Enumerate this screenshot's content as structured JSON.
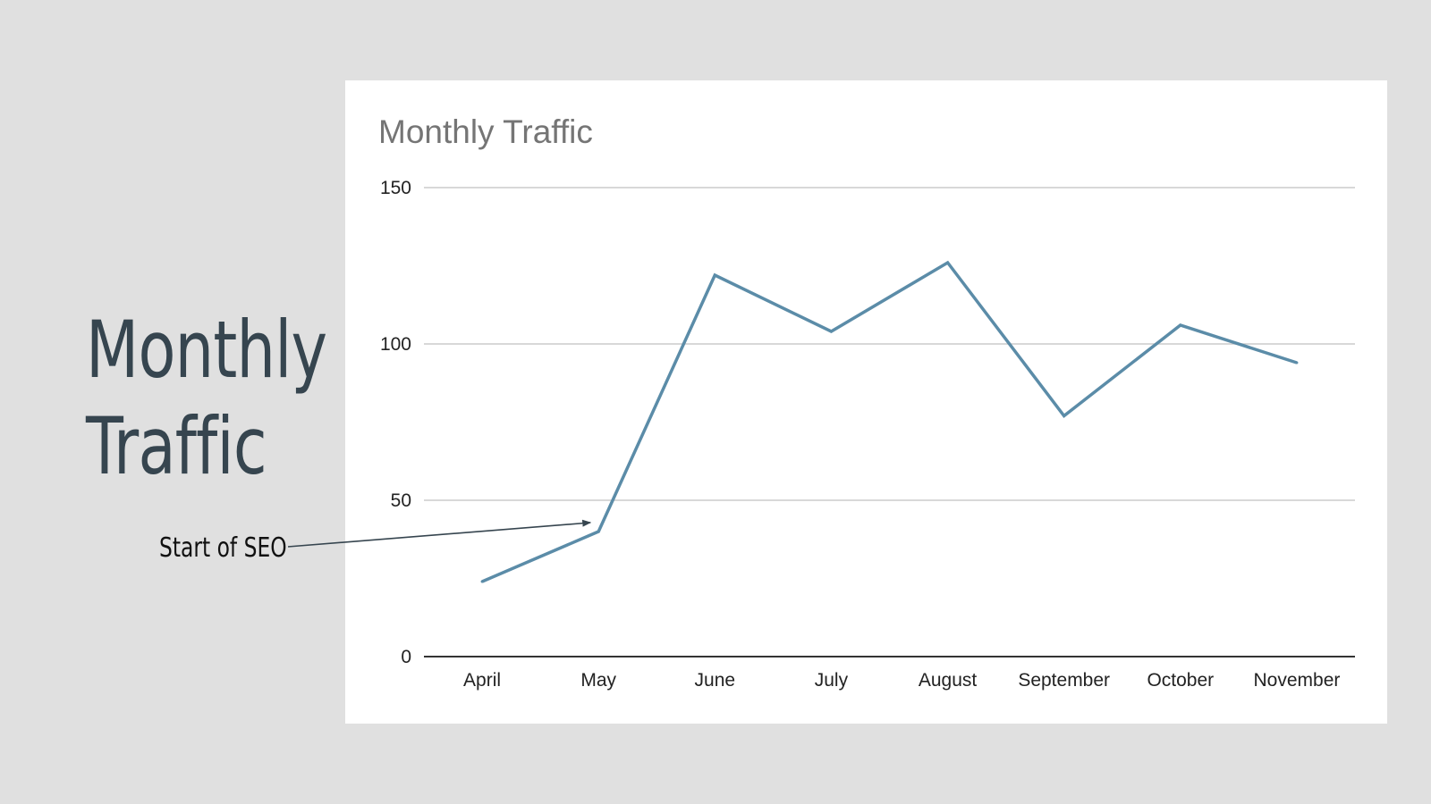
{
  "slide": {
    "title_line1": "Monthly",
    "title_line2": "Traffic"
  },
  "annotation": {
    "label": "Start of SEO",
    "points_to": "May"
  },
  "colors": {
    "background": "#e0e0e0",
    "title": "#36454f",
    "line": "#5b8ca8",
    "grid": "#cccccc",
    "axis": "#333333"
  },
  "chart_data": {
    "type": "line",
    "title": "Monthly Traffic",
    "categories": [
      "April",
      "May",
      "June",
      "July",
      "August",
      "September",
      "October",
      "November"
    ],
    "series": [
      {
        "values": [
          24,
          40,
          122,
          104,
          126,
          77,
          106,
          94
        ]
      }
    ],
    "ylim": [
      0,
      150
    ],
    "yticks": [
      0,
      50,
      100,
      150
    ],
    "grid": true,
    "legend": "none"
  }
}
